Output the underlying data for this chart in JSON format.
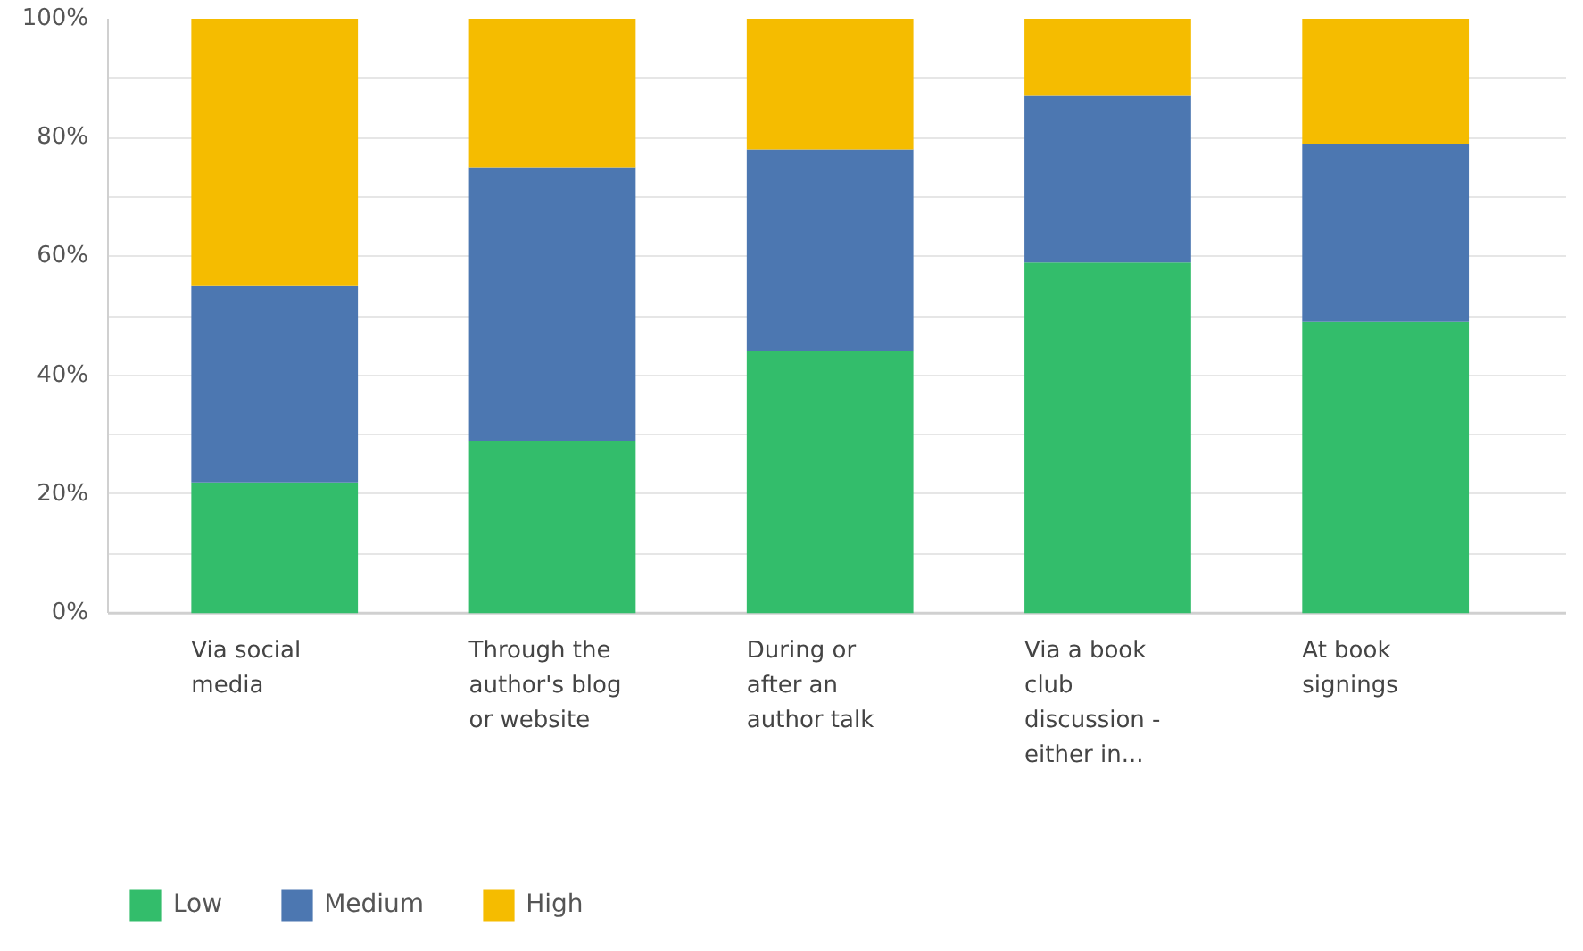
{
  "chart_data": {
    "type": "bar",
    "stacked": true,
    "categories": [
      "Via social media",
      "Through the author's blog or website",
      "During or after an author talk",
      "Via a book club discussion - either in...",
      "At book signings"
    ],
    "series": [
      {
        "name": "Low",
        "color": "#33bd6b",
        "values": [
          22,
          29,
          44,
          59,
          49
        ]
      },
      {
        "name": "Medium",
        "color": "#4c77b1",
        "values": [
          33,
          46,
          34,
          28,
          30
        ]
      },
      {
        "name": "High",
        "color": "#f5bc00",
        "values": [
          45,
          25,
          22,
          13,
          21
        ]
      }
    ],
    "ylim": [
      0,
      100
    ],
    "yticks": [
      {
        "value": 0,
        "label": "0%"
      },
      {
        "value": 10,
        "label": null
      },
      {
        "value": 20,
        "label": "20%"
      },
      {
        "value": 30,
        "label": null
      },
      {
        "value": 40,
        "label": "40%"
      },
      {
        "value": 50,
        "label": null
      },
      {
        "value": 60,
        "label": "60%"
      },
      {
        "value": 70,
        "label": null
      },
      {
        "value": 80,
        "label": "80%"
      },
      {
        "value": 90,
        "label": null
      },
      {
        "value": 100,
        "label": "100%"
      }
    ],
    "grid": "y",
    "legend": "bottom"
  }
}
